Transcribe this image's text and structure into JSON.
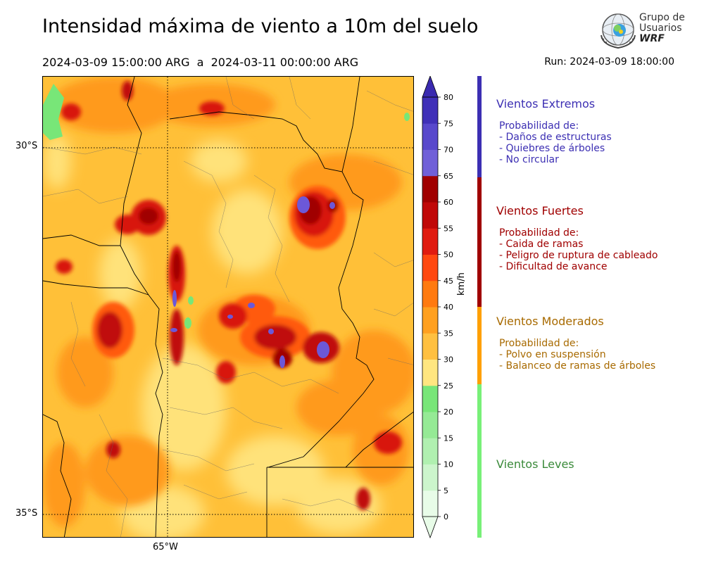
{
  "title": "Intensidad máxima de viento a 10m del suelo",
  "period": "2024-03-09 15:00:00 ARG  a  2024-03-11 00:00:00 ARG",
  "run": "Run: 2024-03-09 18:00:00",
  "logo": {
    "line1": "Grupo de",
    "line2": "Usuarios",
    "line3": "WRF"
  },
  "map": {
    "lat_labels": [
      "30°S",
      "35°S"
    ],
    "lon_labels": [
      "65°W"
    ]
  },
  "colorbar": {
    "unit": "km/h",
    "ticks": [
      "0",
      "5",
      "10",
      "15",
      "20",
      "25",
      "30",
      "35",
      "40",
      "45",
      "50",
      "55",
      "60",
      "65",
      "70",
      "75",
      "80"
    ],
    "colors": [
      "#e8fce8",
      "#ccf5cc",
      "#b0f0b0",
      "#95ea95",
      "#78e678",
      "#ffe680",
      "#ffc040",
      "#ffa020",
      "#ff7a10",
      "#ff4810",
      "#e01b10",
      "#c00808",
      "#a00000",
      "#7060d8",
      "#5848cc",
      "#4030b8"
    ]
  },
  "legend": [
    {
      "title": "Vientos Extremos",
      "color": "#3c2fb3",
      "bar": "#3c2fb3",
      "lines": [
        "Probabilidad de:",
        "- Daños de estructuras",
        "- Quiebres de árboles",
        "- No circular"
      ]
    },
    {
      "title": "Vientos Fuertes",
      "color": "#a00000",
      "bar": "#a00000",
      "lines": [
        "Probabilidad de:",
        "- Caida de ramas",
        "- Peligro de ruptura de cableado",
        "- Dificultad de avance"
      ]
    },
    {
      "title": "Vientos Moderados",
      "color": "#a86a00",
      "bar": "#ffa000",
      "lines": [
        "Probabilidad de:",
        "- Polvo en suspensión",
        "- Balanceo de ramas de árboles"
      ]
    },
    {
      "title": "Vientos Leves",
      "color": "#3a8a3a",
      "bar": "#78f078",
      "lines": []
    }
  ]
}
